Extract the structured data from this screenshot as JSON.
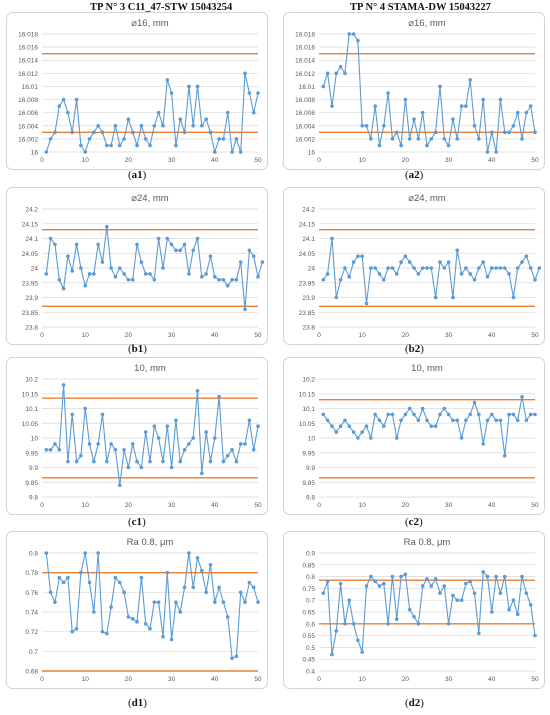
{
  "columns": [
    {
      "title": "TP N° 3 C11_47-STW 15043254"
    },
    {
      "title": "TP N° 4 STAMA-DW 15043227"
    }
  ],
  "colors": {
    "series": "#5b9bd5",
    "limit": "#ed7d31",
    "grid": "#d9d9d9",
    "frame": "#d4d4d4"
  },
  "chart_data": [
    {
      "id": "a1",
      "type": "line",
      "title": "⌀16, mm",
      "caption": "a1",
      "ylim": [
        16.0,
        16.018
      ],
      "yticks": [
        "16",
        "16.002",
        "16.004",
        "16.006",
        "16.008",
        "16.01",
        "16.012",
        "16.014",
        "16.016",
        "16.018"
      ],
      "xticks": [
        0,
        10,
        20,
        30,
        40,
        50
      ],
      "limits": [
        16.015,
        16.003
      ],
      "values": [
        16.0,
        16.002,
        16.003,
        16.007,
        16.008,
        16.006,
        16.003,
        16.008,
        16.001,
        16.0,
        16.002,
        16.003,
        16.004,
        16.003,
        16.001,
        16.001,
        16.004,
        16.001,
        16.002,
        16.005,
        16.003,
        16.001,
        16.004,
        16.002,
        16.001,
        16.004,
        16.006,
        16.004,
        16.011,
        16.009,
        16.001,
        16.005,
        16.003,
        16.01,
        16.004,
        16.01,
        16.004,
        16.005,
        16.003,
        16.0,
        16.002,
        16.002,
        16.006,
        16.0,
        16.002,
        16.0,
        16.012,
        16.009,
        16.006,
        16.009
      ]
    },
    {
      "id": "a2",
      "type": "line",
      "title": "⌀16, mm",
      "caption": "a2",
      "ylim": [
        16.0,
        16.018
      ],
      "yticks": [
        "16",
        "16.002",
        "16.004",
        "16.006",
        "16.008",
        "16.01",
        "16.012",
        "16.014",
        "16.016",
        "16.018"
      ],
      "xticks": [
        0,
        10,
        20,
        30,
        40,
        50
      ],
      "limits": [
        16.015,
        16.003
      ],
      "values": [
        16.01,
        16.012,
        16.007,
        16.012,
        16.013,
        16.012,
        16.018,
        16.018,
        16.017,
        16.004,
        16.004,
        16.002,
        16.007,
        16.001,
        16.004,
        16.009,
        16.002,
        16.003,
        16.001,
        16.008,
        16.002,
        16.005,
        16.002,
        16.006,
        16.001,
        16.002,
        16.003,
        16.01,
        16.002,
        16.001,
        16.005,
        16.002,
        16.007,
        16.007,
        16.011,
        16.004,
        16.002,
        16.008,
        16.0,
        16.003,
        16.0,
        16.008,
        16.003,
        16.003,
        16.004,
        16.006,
        16.002,
        16.006,
        16.007,
        16.003
      ]
    },
    {
      "id": "b1",
      "type": "line",
      "title": "⌀24, mm",
      "caption": "b1",
      "ylim": [
        23.8,
        24.2
      ],
      "yticks": [
        "23.8",
        "23.85",
        "23.9",
        "23.95",
        "24",
        "24.05",
        "24.1",
        "24.15",
        "24.2"
      ],
      "xticks": [
        0,
        10,
        20,
        30,
        40,
        50
      ],
      "limits": [
        24.13,
        23.87
      ],
      "values": [
        23.98,
        24.1,
        24.08,
        23.96,
        23.93,
        24.04,
        23.99,
        24.08,
        24.0,
        23.94,
        23.98,
        23.98,
        24.08,
        24.02,
        24.14,
        24.0,
        23.97,
        24.0,
        23.98,
        23.96,
        23.96,
        24.08,
        24.02,
        23.98,
        23.98,
        23.96,
        24.1,
        24.0,
        24.1,
        24.08,
        24.06,
        24.06,
        24.08,
        23.98,
        24.06,
        24.1,
        23.97,
        23.98,
        24.04,
        23.97,
        23.96,
        23.96,
        23.94,
        23.96,
        23.96,
        24.02,
        23.86,
        24.06,
        24.04,
        23.97,
        24.02
      ]
    },
    {
      "id": "b2",
      "type": "line",
      "title": "⌀24, mm",
      "caption": "b2",
      "ylim": [
        23.8,
        24.2
      ],
      "yticks": [
        "23.8",
        "23.85",
        "23.9",
        "23.95",
        "24",
        "24.05",
        "24.1",
        "24.15",
        "24.2"
      ],
      "xticks": [
        0,
        10,
        20,
        30,
        40,
        50
      ],
      "limits": [
        24.13,
        23.87
      ],
      "values": [
        23.96,
        23.98,
        24.1,
        23.9,
        23.96,
        24.0,
        23.97,
        24.02,
        24.04,
        24.04,
        23.88,
        24.0,
        24.0,
        23.98,
        23.96,
        24.0,
        24.0,
        23.98,
        24.02,
        24.04,
        24.02,
        24.0,
        23.98,
        24.0,
        24.0,
        24.0,
        23.9,
        24.02,
        24.0,
        24.02,
        23.9,
        24.06,
        23.98,
        24.0,
        23.98,
        23.96,
        24.0,
        24.02,
        23.97,
        24.0,
        24.0,
        24.0,
        24.0,
        23.98,
        23.9,
        24.0,
        24.02,
        24.04,
        24.0,
        23.96,
        24.0
      ]
    },
    {
      "id": "c1",
      "type": "line",
      "title": "10, mm",
      "caption": "c1",
      "ylim": [
        9.8,
        10.2
      ],
      "yticks": [
        "9.8",
        "9.85",
        "9.9",
        "9.95",
        "10",
        "10.05",
        "10.1",
        "10.15",
        "10.2"
      ],
      "xticks": [
        0,
        10,
        20,
        30,
        40,
        50
      ],
      "limits": [
        10.135,
        9.865
      ],
      "values": [
        9.96,
        9.96,
        9.98,
        9.96,
        10.18,
        9.92,
        10.08,
        9.92,
        9.94,
        10.1,
        9.98,
        9.92,
        9.98,
        10.08,
        9.92,
        9.98,
        9.96,
        9.84,
        9.96,
        9.9,
        9.98,
        9.92,
        9.9,
        10.02,
        9.92,
        10.04,
        10.0,
        9.92,
        10.04,
        9.9,
        10.06,
        9.92,
        9.96,
        9.98,
        10.0,
        10.16,
        9.88,
        10.02,
        9.92,
        10.0,
        10.14,
        9.92,
        9.94,
        9.96,
        9.92,
        9.98,
        9.98,
        10.06,
        9.96,
        10.04
      ]
    },
    {
      "id": "c2",
      "type": "line",
      "title": "10, mm",
      "caption": "c2",
      "ylim": [
        9.8,
        10.2
      ],
      "yticks": [
        "9.8",
        "9.85",
        "9.9",
        "9.95",
        "10",
        "10.05",
        "10.1",
        "10.15",
        "10.2"
      ],
      "xticks": [
        0,
        10,
        20,
        30,
        40,
        50
      ],
      "limits": [
        10.13,
        9.865
      ],
      "values": [
        10.08,
        10.06,
        10.04,
        10.02,
        10.04,
        10.06,
        10.04,
        10.02,
        10.0,
        10.02,
        10.04,
        10.0,
        10.08,
        10.06,
        10.04,
        10.08,
        10.08,
        10.0,
        10.06,
        10.08,
        10.1,
        10.08,
        10.06,
        10.1,
        10.06,
        10.04,
        10.04,
        10.08,
        10.1,
        10.08,
        10.06,
        10.06,
        10.0,
        10.06,
        10.08,
        10.12,
        10.08,
        9.98,
        10.06,
        10.08,
        10.06,
        10.06,
        9.94,
        10.08,
        10.08,
        10.06,
        10.14,
        10.06,
        10.08,
        10.08
      ]
    },
    {
      "id": "d1",
      "type": "line",
      "title": "Ra 0.8, μm",
      "caption": "d1",
      "ylim": [
        0.68,
        0.8
      ],
      "yticks": [
        "0.68",
        "0.7",
        "0.72",
        "0.74",
        "0.76",
        "0.78",
        "0.8"
      ],
      "xticks": [
        0,
        10,
        20,
        30,
        40,
        50
      ],
      "limits": [
        0.78,
        0.68
      ],
      "values": [
        0.8,
        0.76,
        0.75,
        0.775,
        0.77,
        0.775,
        0.72,
        0.723,
        0.78,
        0.8,
        0.77,
        0.74,
        0.8,
        0.72,
        0.718,
        0.745,
        0.775,
        0.77,
        0.76,
        0.735,
        0.733,
        0.73,
        0.775,
        0.728,
        0.723,
        0.75,
        0.75,
        0.715,
        0.78,
        0.712,
        0.75,
        0.74,
        0.765,
        0.8,
        0.765,
        0.795,
        0.782,
        0.76,
        0.788,
        0.75,
        0.765,
        0.75,
        0.735,
        0.693,
        0.695,
        0.76,
        0.75,
        0.77,
        0.765,
        0.75
      ]
    },
    {
      "id": "d2",
      "type": "line",
      "title": "Ra 0.8, μm",
      "caption": "d2",
      "ylim": [
        0.4,
        0.9
      ],
      "yticks": [
        "0.4",
        "0.45",
        "0.5",
        "0.55",
        "0.6",
        "0.65",
        "0.7",
        "0.75",
        "0.8",
        "0.85",
        "0.9"
      ],
      "xticks": [
        0,
        10,
        20,
        30,
        40,
        50
      ],
      "limits": [
        0.785,
        0.6
      ],
      "values": [
        0.73,
        0.78,
        0.47,
        0.57,
        0.77,
        0.6,
        0.7,
        0.6,
        0.53,
        0.48,
        0.76,
        0.8,
        0.78,
        0.76,
        0.77,
        0.6,
        0.8,
        0.62,
        0.8,
        0.81,
        0.66,
        0.63,
        0.6,
        0.76,
        0.79,
        0.76,
        0.79,
        0.73,
        0.76,
        0.6,
        0.72,
        0.7,
        0.7,
        0.77,
        0.78,
        0.73,
        0.56,
        0.82,
        0.8,
        0.65,
        0.8,
        0.73,
        0.8,
        0.66,
        0.7,
        0.64,
        0.8,
        0.73,
        0.68,
        0.55
      ]
    }
  ]
}
